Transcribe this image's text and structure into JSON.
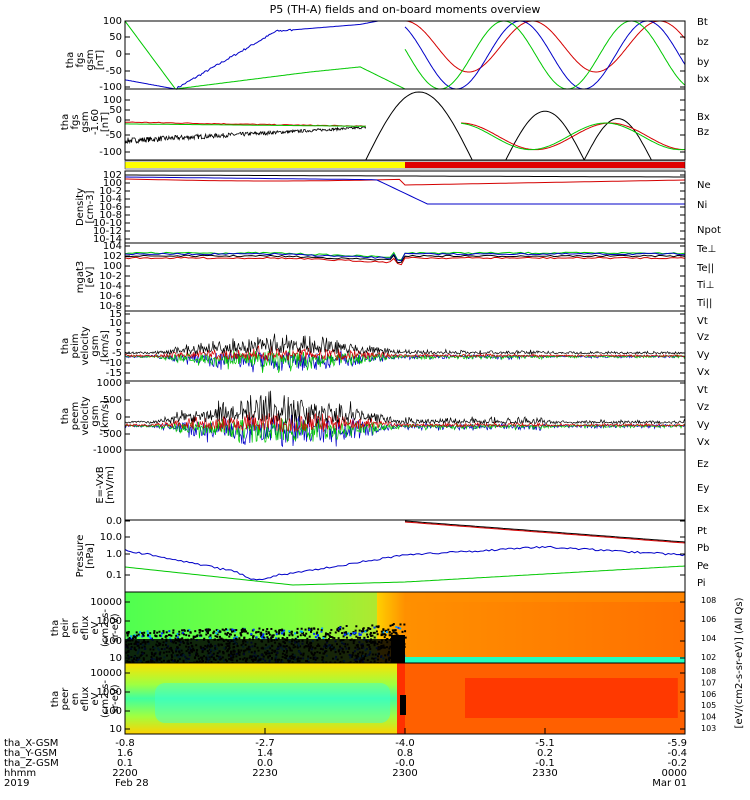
{
  "title": "P5 (TH-A) fields and on-board moments overview",
  "colors": {
    "black": "#000000",
    "red": "#d40000",
    "green": "#00c800",
    "blue": "#0000c8",
    "yellow": "#ffff00"
  },
  "chart_data": [
    {
      "type": "line",
      "panel": "fgs-gsm",
      "ylabel": [
        "tha",
        "fgs",
        "gsm",
        "[nT]"
      ],
      "ylim": [
        -100,
        100
      ],
      "yticks": [
        "100",
        "50",
        "0",
        "-50",
        "-100"
      ],
      "series": [
        {
          "name": "Bt",
          "color": "#000000"
        },
        {
          "name": "bz",
          "color": "#d40000"
        },
        {
          "name": "by",
          "color": "#00c800"
        },
        {
          "name": "bx",
          "color": "#0000c8"
        }
      ]
    },
    {
      "type": "line",
      "panel": "fgs-gsm-dc",
      "ylabel": [
        "tha",
        "fgs",
        "gsm",
        "-1.60",
        "[nT]"
      ],
      "ylim": [
        -120,
        120
      ],
      "yticks": [
        "100",
        "50",
        "0",
        "-50",
        "-100"
      ],
      "series": [
        {
          "name": "Bx",
          "color": "#000000"
        },
        {
          "name": "Bz",
          "color": "#d40000"
        }
      ]
    },
    {
      "type": "line",
      "panel": "density",
      "ylabel": [
        "Density",
        "[cm-3]"
      ],
      "yticks": [
        "10^2",
        "10^0",
        "10^-2",
        "10^-4",
        "10^-6",
        "10^-8",
        "10^-10",
        "10^-12",
        "10^-14"
      ],
      "series": [
        {
          "name": "Ne",
          "color": "#d40000"
        },
        {
          "name": "Ni",
          "color": "#000000"
        },
        {
          "name": "Npot",
          "color": "#0000c8"
        }
      ]
    },
    {
      "type": "line",
      "panel": "temperature",
      "ylabel": [
        "mgat3",
        "[eV]"
      ],
      "yticks": [
        "10^4",
        "10^2",
        "10^0",
        "10^-2",
        "10^-4",
        "10^-6",
        "10^-8"
      ],
      "series": [
        {
          "name": "Te⊥",
          "color": "#d40000"
        },
        {
          "name": "Te||",
          "color": "#000000"
        },
        {
          "name": "Ti⊥",
          "color": "#0000c8"
        },
        {
          "name": "Ti||",
          "color": "#00c800"
        }
      ]
    },
    {
      "type": "line",
      "panel": "peim-velocity",
      "ylabel": [
        "tha",
        "peim",
        "velocity",
        "gsm",
        "[km/s]"
      ],
      "ylim": [
        -15,
        15
      ],
      "yticks": [
        "15",
        "10",
        "5",
        "0",
        "-5",
        "-10",
        "-15"
      ],
      "series": [
        {
          "name": "Vt",
          "color": "#000000"
        },
        {
          "name": "Vz",
          "color": "#d40000"
        },
        {
          "name": "Vy",
          "color": "#00c800"
        },
        {
          "name": "Vx",
          "color": "#0000c8"
        }
      ]
    },
    {
      "type": "line",
      "panel": "peem-velocity",
      "ylabel": [
        "tha",
        "peem",
        "velocity",
        "gsm",
        "[km/s]"
      ],
      "ylim": [
        -1000,
        1000
      ],
      "yticks": [
        "1000",
        "500",
        "0",
        "-500",
        "-1000"
      ],
      "series": [
        {
          "name": "Vt",
          "color": "#000000"
        },
        {
          "name": "Vz",
          "color": "#d40000"
        },
        {
          "name": "Vy",
          "color": "#00c800"
        },
        {
          "name": "Vx",
          "color": "#0000c8"
        }
      ]
    },
    {
      "type": "line",
      "panel": "efield",
      "ylabel": [
        "E=-VxB",
        "[mV/m]"
      ],
      "series": [
        {
          "name": "Ez",
          "color": "#d40000"
        },
        {
          "name": "Ey",
          "color": "#00c800"
        },
        {
          "name": "Ex",
          "color": "#0000c8"
        }
      ]
    },
    {
      "type": "line",
      "panel": "pressure",
      "ylabel": [
        "Pressure",
        "[nPa]"
      ],
      "yticks": [
        "0.0",
        "10.0",
        "1.0",
        "0.1"
      ],
      "series": [
        {
          "name": "Pt",
          "color": "#000000"
        },
        {
          "name": "Pb",
          "color": "#d40000"
        },
        {
          "name": "Pe",
          "color": "#00c800"
        },
        {
          "name": "Pi",
          "color": "#0000c8"
        }
      ]
    },
    {
      "type": "heatmap",
      "panel": "peir-eflux",
      "ylabel": [
        "tha",
        "peir",
        "en",
        "eflux",
        "eV",
        "(cm2-s-",
        "sr-eV)"
      ],
      "yticks": [
        "10000",
        "1000",
        "100",
        "10"
      ],
      "colorbar_ticks": [
        "10^8",
        "10^6",
        "10^4",
        "10^2"
      ],
      "colorbar_label": "[eV/(cm2-s-sr-eV)] (All Qs)"
    },
    {
      "type": "heatmap",
      "panel": "peer-eflux",
      "ylabel": [
        "tha",
        "peer",
        "en",
        "eflux",
        "eV",
        "(cm2-s-",
        "sr-eV)"
      ],
      "yticks": [
        "10000",
        "1000",
        "100",
        "10"
      ],
      "colorbar_ticks": [
        "10^8",
        "10^7",
        "10^6",
        "10^5",
        "10^4",
        "10^3"
      ]
    }
  ],
  "xaxis": {
    "rows": [
      {
        "label": "tha_X-GSM",
        "values": [
          "-0.8",
          "-2.7",
          "-4.0",
          "-5.1",
          "-5.9"
        ]
      },
      {
        "label": "tha_Y-GSM",
        "values": [
          "1.6",
          "1.4",
          "0.8",
          "0.2",
          "-0.4"
        ]
      },
      {
        "label": "tha_Z-GSM",
        "values": [
          "0.1",
          "0.0",
          "-0.0",
          "-0.1",
          "-0.2"
        ]
      },
      {
        "label": "hhmm",
        "values": [
          "2200",
          "2230",
          "2300",
          "2330",
          "0000"
        ]
      }
    ],
    "date_row": {
      "year": "2019",
      "start": "Feb 28",
      "end": "Mar 01"
    }
  }
}
